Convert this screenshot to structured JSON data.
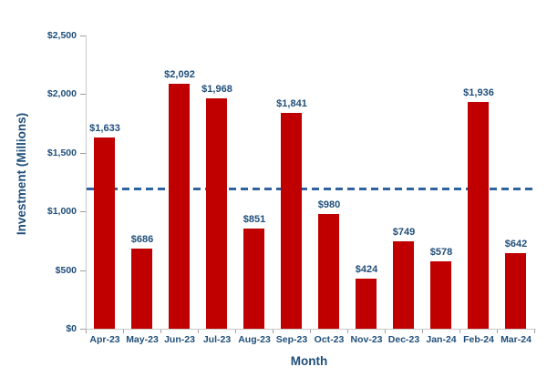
{
  "chart_data": {
    "type": "bar",
    "title": "",
    "xlabel": "Month",
    "ylabel": "Investment (Millions)",
    "categories": [
      "Apr-23",
      "May-23",
      "Jun-23",
      "Jul-23",
      "Aug-23",
      "Sep-23",
      "Oct-23",
      "Nov-23",
      "Dec-23",
      "Jan-24",
      "Feb-24",
      "Mar-24"
    ],
    "values": [
      1633,
      686,
      2092,
      1968,
      851,
      1841,
      980,
      424,
      749,
      578,
      1936,
      642
    ],
    "bar_labels": [
      "$1,633",
      "$686",
      "$2,092",
      "$1,968",
      "$851",
      "$1,841",
      "$980",
      "$424",
      "$749",
      "$578",
      "$1,936",
      "$642"
    ],
    "ylim": [
      0,
      2500
    ],
    "ytick_values": [
      0,
      500,
      1000,
      1500,
      2000,
      2500
    ],
    "ytick_labels": [
      "$0",
      "$500",
      "$1,000",
      "$1,500",
      "$2,000",
      "$2,500"
    ],
    "grid": false,
    "legend": "none",
    "reference_line": {
      "style": "dashed",
      "value": 1198,
      "meaning": "average of monthly values"
    },
    "colors": {
      "bar": "#C00000",
      "text": "#1F4E79",
      "reference_line": "#2F639E",
      "axis": "#C9C9C9",
      "tick": "#9E9E9E",
      "background": "#FFFFFF"
    }
  }
}
